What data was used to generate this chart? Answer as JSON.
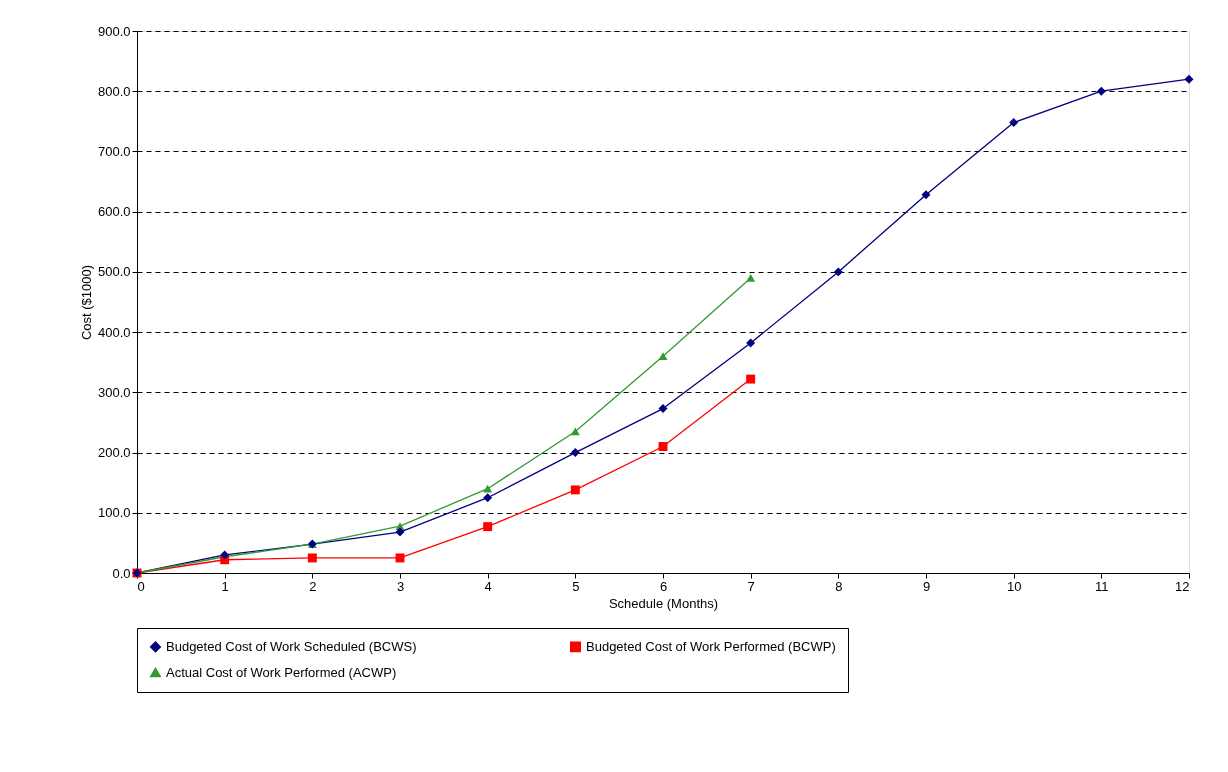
{
  "chart_data": {
    "type": "line",
    "xlabel": "Schedule (Months)",
    "ylabel": "Cost ($1000)",
    "xlim": [
      0,
      12
    ],
    "xticks": [
      0,
      1,
      2,
      3,
      4,
      5,
      6,
      7,
      8,
      9,
      10,
      11,
      12
    ],
    "ylim": [
      0,
      900
    ],
    "yticks": [
      {
        "value": 0,
        "label": "0.0"
      },
      {
        "value": 100,
        "label": "100.0"
      },
      {
        "value": 200,
        "label": "200.0"
      },
      {
        "value": 300,
        "label": "300.0"
      },
      {
        "value": 400,
        "label": "400.0"
      },
      {
        "value": 500,
        "label": "500.0"
      },
      {
        "value": 600,
        "label": "600.0"
      },
      {
        "value": 700,
        "label": "700.0"
      },
      {
        "value": 800,
        "label": "800.0"
      },
      {
        "value": 900,
        "label": "900.0"
      }
    ],
    "grid": "y",
    "legend": "bottom",
    "line_style": "solid",
    "series": [
      {
        "name": "Budgeted Cost of Work Scheduled (BCWS)",
        "color": "#000080",
        "marker": "diamond",
        "x": [
          0,
          1,
          2,
          3,
          4,
          5,
          6,
          7,
          8,
          9,
          10,
          11,
          12
        ],
        "values": [
          0,
          30,
          48,
          68,
          125,
          200,
          273,
          382,
          500,
          628,
          748,
          800,
          820
        ]
      },
      {
        "name": "Budgeted Cost of Work Performed (BCWP)",
        "color": "#ff0000",
        "marker": "square",
        "x": [
          0,
          1,
          2,
          3,
          4,
          5,
          6,
          7
        ],
        "values": [
          0,
          22,
          25,
          25,
          77,
          138,
          210,
          322
        ]
      },
      {
        "name": "Actual Cost of Work Performed (ACWP)",
        "color": "#339933",
        "marker": "triangle",
        "x": [
          0,
          1,
          2,
          3,
          4,
          5,
          6,
          7
        ],
        "values": [
          0,
          27,
          48,
          78,
          140,
          235,
          360,
          490
        ]
      }
    ]
  }
}
